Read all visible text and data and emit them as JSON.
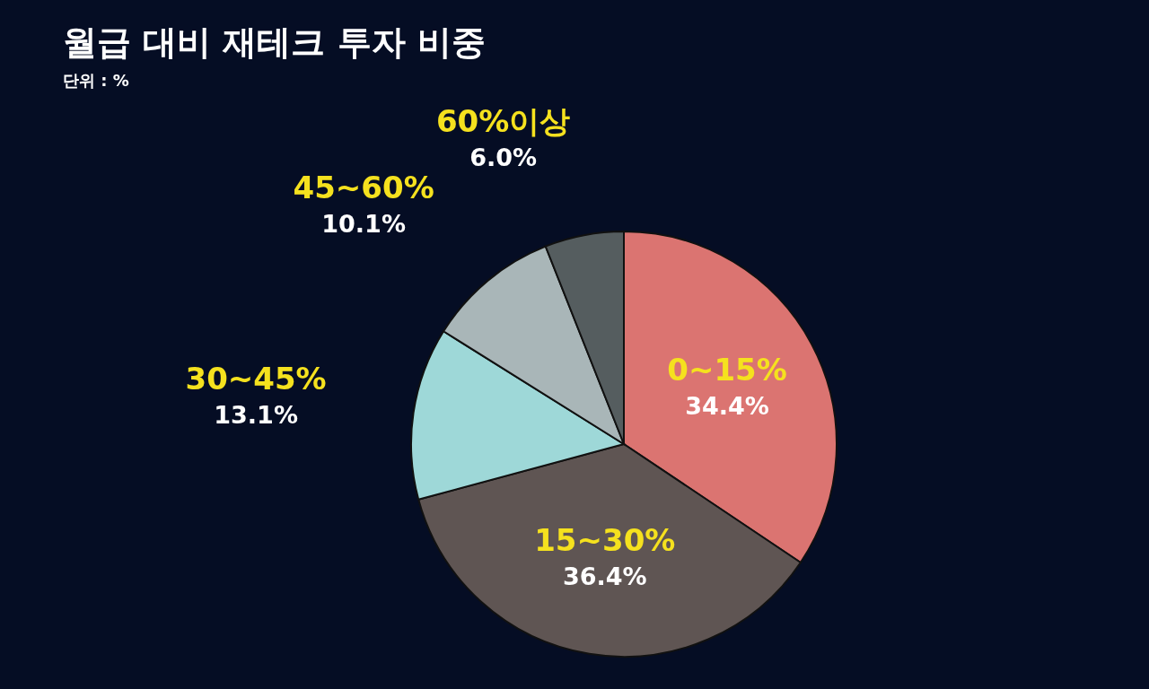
{
  "chart_data": {
    "type": "pie",
    "title": "월급 대비 재테크 투자 비중",
    "subtitle": "단위 : %",
    "categories": [
      "0~15%",
      "15~30%",
      "30~45%",
      "45~60%",
      "60%이상"
    ],
    "values": [
      34.4,
      36.4,
      13.1,
      10.1,
      6.0
    ],
    "value_labels": [
      "34.4%",
      "36.4%",
      "13.1%",
      "10.1%",
      "6.0%"
    ],
    "colors": [
      "#db7471",
      "#5f5553",
      "#9ed8d8",
      "#a9b6b8",
      "#555d5f"
    ],
    "legend": false
  }
}
